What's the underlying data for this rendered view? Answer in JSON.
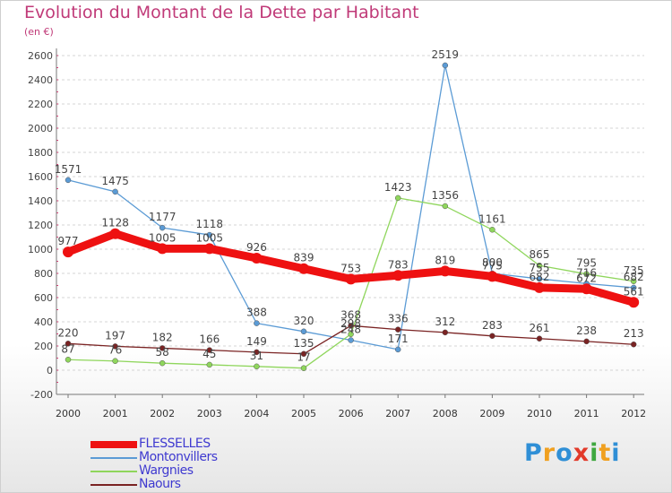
{
  "chart_data": {
    "type": "line",
    "title": "Evolution du Montant de la Dette par Habitant",
    "unit": "(en €)",
    "x": [
      "2000",
      "2001",
      "2002",
      "2003",
      "2004",
      "2005",
      "2006",
      "2007",
      "2008",
      "2009",
      "2010",
      "2011",
      "2012"
    ],
    "ylim": [
      -200,
      2600
    ],
    "yticks": [
      -200,
      0,
      200,
      400,
      600,
      800,
      1000,
      1200,
      1400,
      1600,
      1800,
      2000,
      2200,
      2400,
      2600
    ],
    "grid": "horizontal dashed",
    "legend_position": "bottom-left",
    "series": [
      {
        "name": "FLESSELLES",
        "color": "#ee1111",
        "values": [
          977,
          1128,
          1005,
          1005,
          926,
          839,
          753,
          783,
          819,
          775,
          682,
          672,
          561
        ],
        "labels": [
          "977",
          "1128",
          "1005",
          "1005",
          "926",
          "839",
          "753",
          "783",
          "819",
          "775",
          "682",
          "672",
          "561"
        ]
      },
      {
        "name": "Montonvillers",
        "color": "#5b9bd5",
        "values": [
          1571,
          1475,
          1177,
          1118,
          388,
          320,
          248,
          171,
          2519,
          800,
          755,
          716,
          682
        ],
        "labels": [
          "1571",
          "1475",
          "1177",
          "1118",
          "388",
          "320",
          "248",
          "171",
          "2519",
          "800",
          "755",
          "716",
          "682"
        ]
      },
      {
        "name": "Wargnies",
        "color": "#8fd65c",
        "values": [
          87,
          76,
          58,
          45,
          31,
          17,
          298,
          1423,
          1356,
          1161,
          865,
          795,
          735
        ],
        "labels": [
          "87",
          "76",
          "58",
          "45",
          "31",
          "17",
          "298",
          "1423",
          "1356",
          "1161",
          "865",
          "795",
          "735"
        ]
      },
      {
        "name": "Naours",
        "color": "#7a2323",
        "values": [
          220,
          197,
          182,
          166,
          149,
          135,
          368,
          336,
          312,
          283,
          261,
          238,
          213
        ],
        "labels": [
          "220",
          "197",
          "182",
          "166",
          "149",
          "135",
          "368",
          "336",
          "312",
          "283",
          "261",
          "238",
          "213"
        ]
      }
    ]
  },
  "logo": {
    "letters": [
      "P",
      "r",
      "o",
      "x",
      "i",
      "t",
      "i"
    ],
    "colors": [
      "#2f8fd6",
      "#f0a020",
      "#2f8fd6",
      "#e23a2a",
      "#3fa83f",
      "#f0a020",
      "#2f8fd6"
    ]
  }
}
